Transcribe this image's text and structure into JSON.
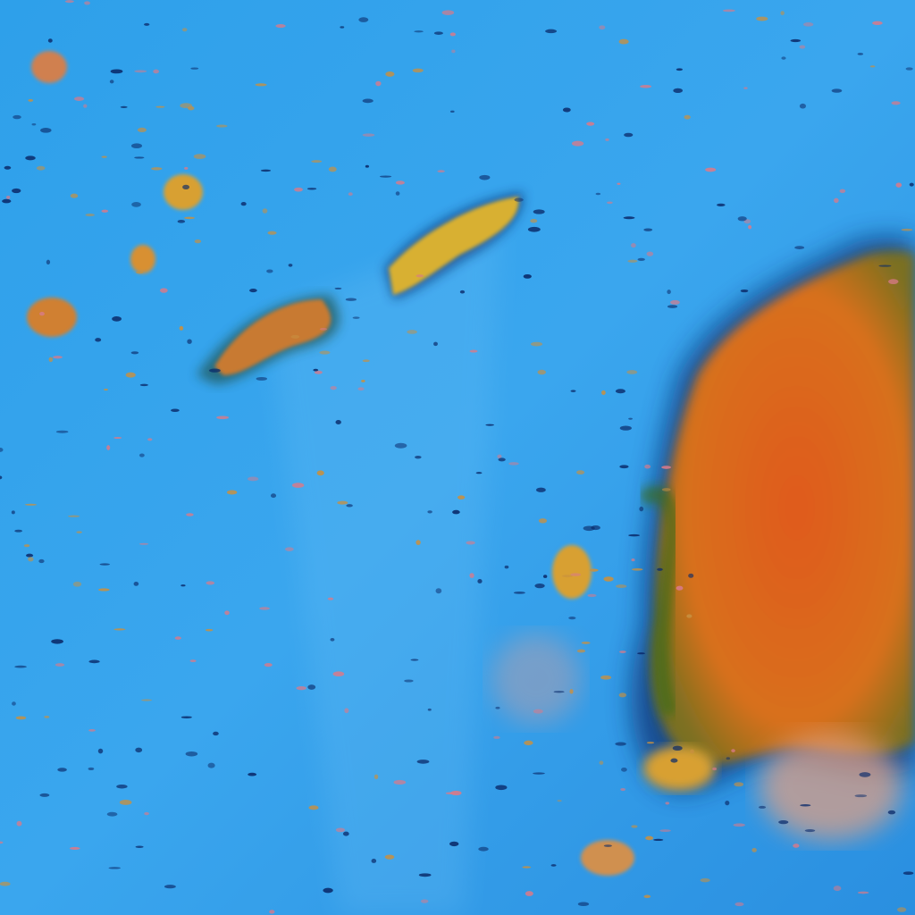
{
  "image": {
    "colors": {
      "ocean": "#2a9be6",
      "ocean_light": "#4fb0f0",
      "cloud_mass": "#e0641e",
      "cloud_mass_edge": "#5a6a1a",
      "cloud_patch": "#d8b030",
      "dark_fringe": "#0a2a6a",
      "haze": "#f0a090"
    }
  }
}
